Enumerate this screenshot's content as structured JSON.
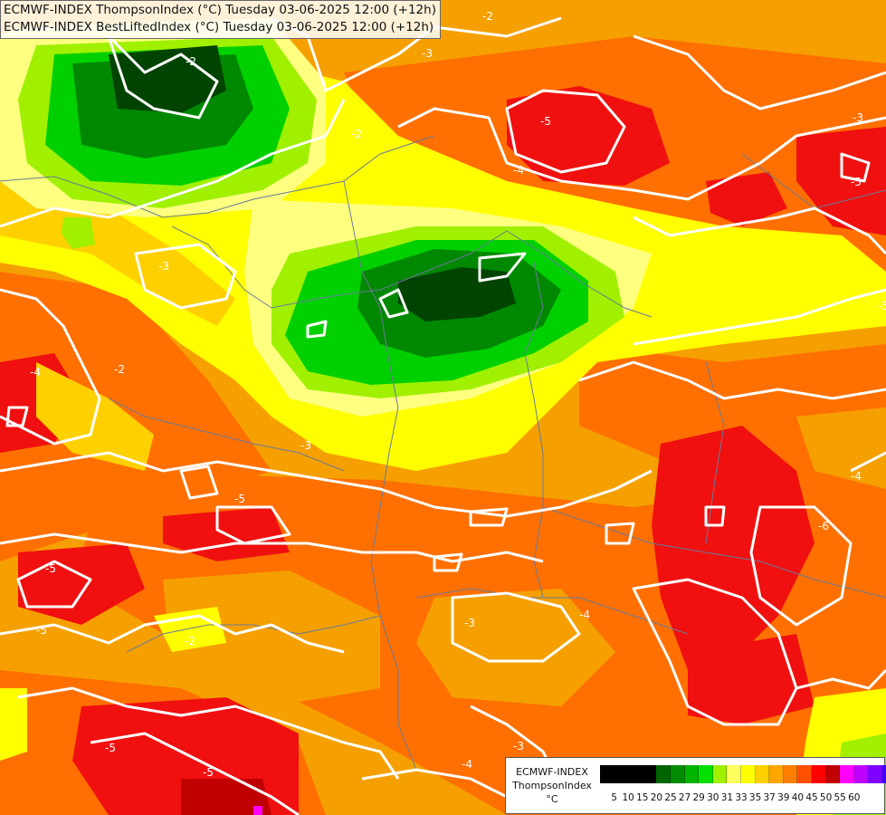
{
  "header": {
    "line1": "ECMWF-INDEX ThompsonIndex (°C) Tuesday 03-06-2025 12:00 (+12h)",
    "line2": "ECMWF-INDEX BestLiftedIndex (°C) Tuesday 03-06-2025 12:00 (+12h)"
  },
  "legend": {
    "source": "ECMWF-INDEX",
    "variable": "ThompsonIndex",
    "unit": "°C",
    "colors": [
      "#000000",
      "#000000",
      "#000000",
      "#000000",
      "#006400",
      "#008c00",
      "#00b400",
      "#00e000",
      "#a0f000",
      "#ffff60",
      "#ffff00",
      "#ffd000",
      "#ffa500",
      "#ff8000",
      "#ff5000",
      "#ff0000",
      "#c00000",
      "#ff00ff",
      "#c000ff",
      "#8000ff",
      "#4000ff",
      "#0000ff"
    ],
    "ticks": [
      "5",
      "10",
      "15",
      "20",
      "25",
      "27",
      "29",
      "30",
      "31",
      "33",
      "35",
      "37",
      "39",
      "40",
      "45",
      "50",
      "55",
      "60"
    ]
  },
  "map": {
    "contour_labels": [
      "-2",
      "-2",
      "-2",
      "-5",
      "-4",
      "-3",
      "-5",
      "-3",
      "-4",
      "-2",
      "-3",
      "-3",
      "-5",
      "-5",
      "-6",
      "-4",
      "-2",
      "-3",
      "-5",
      "-5",
      "-4",
      "-3",
      "-5",
      "-4",
      "-5"
    ],
    "colors": {
      "orange": "#f5a000",
      "dark_orange": "#ff7000",
      "red": "#f01010",
      "yellow": "#ffff00",
      "light_yellow": "#ffff80",
      "light_green": "#a0f000",
      "green": "#00d000",
      "dark_green": "#008800",
      "darkest_green": "#004400",
      "isoline": "#ffffff",
      "border": "#6a7a9a"
    }
  }
}
